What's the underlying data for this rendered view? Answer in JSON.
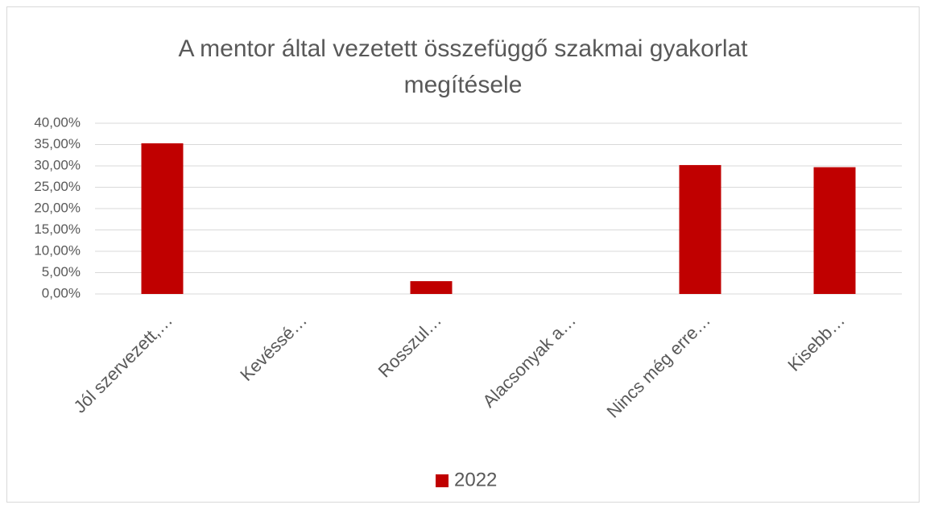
{
  "chart_data": {
    "type": "bar",
    "title": "A mentor által vezetett összefüggő szakmai gyakorlat megítésele",
    "categories": [
      "Jól szervezett,…",
      "Kevéssé…",
      "Rosszul…",
      "Alacsonyak a…",
      "Nincs még erre…",
      "Kisebb…"
    ],
    "series": [
      {
        "name": "2022",
        "color": "#c00000",
        "values": [
          35.3,
          0,
          3.0,
          0,
          30.2,
          29.7
        ]
      }
    ],
    "ylim": [
      0,
      40
    ],
    "yticks": [
      {
        "value": 0,
        "label": "0,00%"
      },
      {
        "value": 5,
        "label": "5,00%"
      },
      {
        "value": 10,
        "label": "10,00%"
      },
      {
        "value": 15,
        "label": "15,00%"
      },
      {
        "value": 20,
        "label": "20,00%"
      },
      {
        "value": 25,
        "label": "25,00%"
      },
      {
        "value": 30,
        "label": "30,00%"
      },
      {
        "value": 35,
        "label": "35,00%"
      },
      {
        "value": 40,
        "label": "40,00%"
      }
    ],
    "grid": true,
    "legend": "bottom"
  }
}
